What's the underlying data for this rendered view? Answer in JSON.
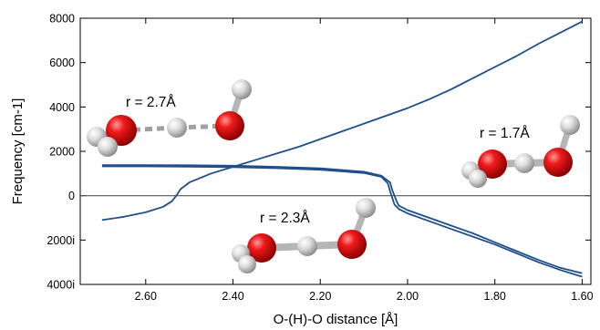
{
  "chart_data": {
    "type": "line",
    "xlabel": "O-(H)-O distance [Å]",
    "ylabel": "Frequency [cm-1]",
    "xlim": [
      2.75,
      1.58
    ],
    "x_reversed": true,
    "ylim": [
      -4000,
      8000
    ],
    "x_ticks": [
      2.6,
      2.4,
      2.2,
      2.0,
      1.8,
      1.6
    ],
    "x_tick_labels": [
      "2.60",
      "2.40",
      "2.20",
      "2.00",
      "1.80",
      "1.60"
    ],
    "y_ticks": [
      8000,
      6000,
      4000,
      2000,
      0,
      -2000,
      -4000
    ],
    "y_tick_labels": [
      "8000",
      "6000",
      "4000",
      "2000",
      "0",
      "2000i",
      "4000i"
    ],
    "zero_line": true,
    "line_color": "#1f4e8c",
    "series": [
      {
        "x": [
          2.7,
          2.65,
          2.6,
          2.56,
          2.54,
          2.53,
          2.52,
          2.5,
          2.45,
          2.4,
          2.35,
          2.3,
          2.25,
          2.2,
          2.15,
          2.1,
          2.05,
          2.0,
          1.95,
          1.9,
          1.85,
          1.8,
          1.75,
          1.7,
          1.65,
          1.6
        ],
        "values": [
          -1100,
          -950,
          -750,
          -500,
          -250,
          0,
          300,
          600,
          1000,
          1300,
          1600,
          1900,
          2200,
          2550,
          2900,
          3250,
          3600,
          3950,
          4350,
          4800,
          5300,
          5800,
          6300,
          6850,
          7350,
          7850
        ]
      },
      {
        "x": [
          2.7,
          2.6,
          2.5,
          2.4,
          2.3,
          2.2,
          2.1,
          2.06,
          2.04,
          2.035,
          2.03,
          2.025,
          2.02,
          2.0,
          1.95,
          1.9,
          1.85,
          1.8,
          1.75,
          1.7,
          1.65,
          1.6
        ],
        "values": [
          1380,
          1380,
          1370,
          1350,
          1300,
          1230,
          1080,
          900,
          600,
          250,
          0,
          -250,
          -450,
          -650,
          -1000,
          -1350,
          -1700,
          -2100,
          -2500,
          -2900,
          -3250,
          -3500
        ]
      },
      {
        "x": [
          2.7,
          2.6,
          2.5,
          2.4,
          2.3,
          2.2,
          2.1,
          2.06,
          2.045,
          2.04,
          2.035,
          2.03,
          2.02,
          2.0,
          1.95,
          1.9,
          1.85,
          1.8,
          1.75,
          1.7,
          1.65,
          1.6
        ],
        "values": [
          1320,
          1320,
          1310,
          1290,
          1240,
          1170,
          1020,
          850,
          550,
          200,
          -100,
          -400,
          -600,
          -800,
          -1150,
          -1500,
          -1850,
          -2200,
          -2600,
          -3000,
          -3350,
          -3650
        ]
      }
    ],
    "annotations": [
      "r = 2.7Å",
      "r = 2.3Å",
      "r = 1.7Å"
    ]
  }
}
